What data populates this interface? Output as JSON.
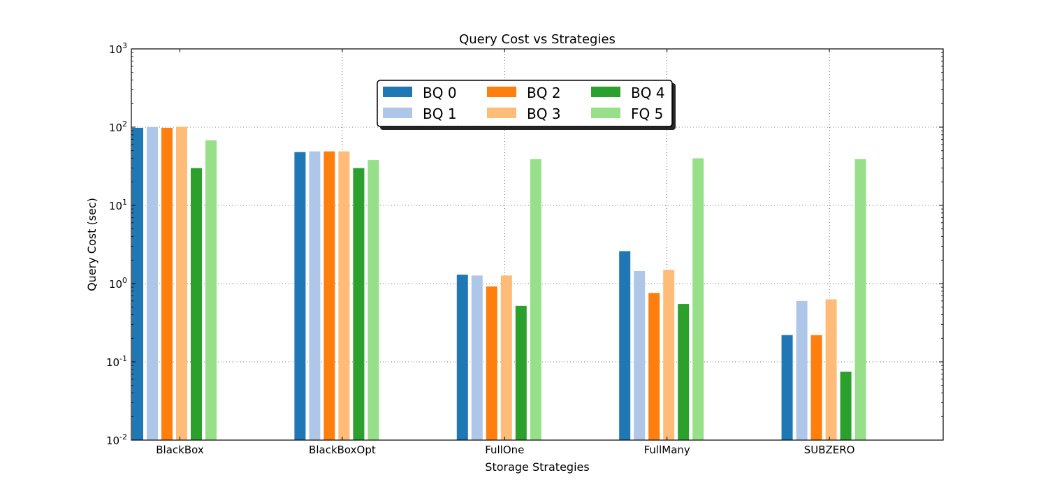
{
  "chart_data": {
    "type": "bar",
    "title": "Query Cost vs Strategies",
    "xlabel": "Storage Strategies",
    "ylabel": "Query Cost (sec)",
    "yscale": "log",
    "ylim": [
      0.01,
      1000
    ],
    "y_ticks": [
      {
        "value": 0.01,
        "base": "10",
        "exp": "-2"
      },
      {
        "value": 0.1,
        "base": "10",
        "exp": "-1"
      },
      {
        "value": 1,
        "base": "10",
        "exp": "0"
      },
      {
        "value": 10,
        "base": "10",
        "exp": "1"
      },
      {
        "value": 100,
        "base": "10",
        "exp": "2"
      },
      {
        "value": 1000,
        "base": "10",
        "exp": "3"
      }
    ],
    "categories": [
      "BlackBox",
      "BlackBoxOpt",
      "FullOne",
      "FullMany",
      "SUBZERO"
    ],
    "grid": true,
    "legend_position": "top-center",
    "series": [
      {
        "name": "BQ 0",
        "color": "#1f77b4",
        "values": [
          98,
          48,
          1.3,
          2.6,
          0.22
        ]
      },
      {
        "name": "BQ 1",
        "color": "#aec7e8",
        "values": [
          100,
          49,
          1.27,
          1.45,
          0.6
        ]
      },
      {
        "name": "BQ 2",
        "color": "#ff7f0e",
        "values": [
          98,
          49,
          0.92,
          0.76,
          0.22
        ]
      },
      {
        "name": "BQ 3",
        "color": "#ffbb78",
        "values": [
          101,
          49,
          1.27,
          1.5,
          0.63
        ]
      },
      {
        "name": "BQ 4",
        "color": "#2ca02c",
        "values": [
          30,
          30,
          0.52,
          0.55,
          0.075
        ]
      },
      {
        "name": "FQ 5",
        "color": "#98df8a",
        "values": [
          68,
          38,
          39,
          40,
          39
        ]
      }
    ]
  }
}
